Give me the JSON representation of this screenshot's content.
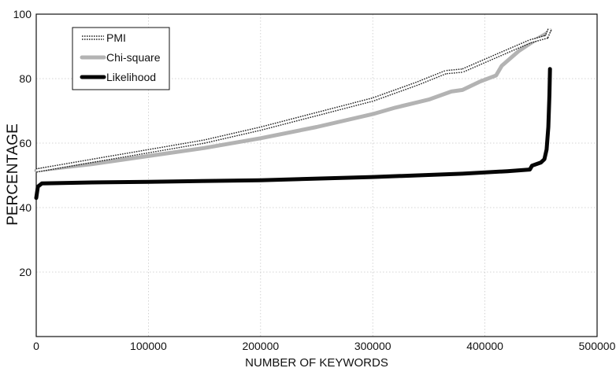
{
  "chart_data": {
    "type": "line",
    "xlabel": "NUMBER OF KEYWORDS",
    "ylabel": "PERCENTAGE",
    "xlim": [
      0,
      500000
    ],
    "ylim": [
      0,
      100
    ],
    "x_ticks": [
      0,
      100000,
      200000,
      300000,
      400000,
      500000
    ],
    "x_tick_labels": [
      "0",
      "100000",
      "200000",
      "300000",
      "400000",
      "500000"
    ],
    "y_ticks": [
      20,
      40,
      60,
      80,
      100
    ],
    "y_tick_labels": [
      "20",
      "40",
      "60",
      "80",
      "100"
    ],
    "grid": true,
    "legend_position": "top-left",
    "series": [
      {
        "name": "PMI",
        "color": "#222222",
        "style": "open-square-markers",
        "points": [
          [
            0,
            51.5
          ],
          [
            50000,
            54.5
          ],
          [
            100000,
            57.5
          ],
          [
            150000,
            60.5
          ],
          [
            200000,
            64.5
          ],
          [
            250000,
            69
          ],
          [
            300000,
            73.5
          ],
          [
            340000,
            78.5
          ],
          [
            365000,
            82
          ],
          [
            380000,
            82.5
          ],
          [
            400000,
            85.5
          ],
          [
            420000,
            88.5
          ],
          [
            440000,
            91.5
          ],
          [
            455000,
            93
          ],
          [
            458000,
            95.5
          ]
        ]
      },
      {
        "name": "Chi-square",
        "color": "#b3b3b3",
        "style": "thick-line",
        "points": [
          [
            0,
            51.5
          ],
          [
            50000,
            53.5
          ],
          [
            100000,
            56
          ],
          [
            150000,
            58.5
          ],
          [
            200000,
            61.5
          ],
          [
            250000,
            65
          ],
          [
            300000,
            69
          ],
          [
            320000,
            71
          ],
          [
            350000,
            73.5
          ],
          [
            370000,
            76
          ],
          [
            380000,
            76.5
          ],
          [
            395000,
            79
          ],
          [
            410000,
            81
          ],
          [
            415000,
            84
          ],
          [
            430000,
            88.5
          ],
          [
            445000,
            92
          ],
          [
            455000,
            94
          ],
          [
            458000,
            95
          ]
        ]
      },
      {
        "name": "Likelihood",
        "color": "#050505",
        "style": "thick-line",
        "points": [
          [
            0,
            43
          ],
          [
            1500,
            46.5
          ],
          [
            5000,
            47.5
          ],
          [
            50000,
            47.8
          ],
          [
            100000,
            48
          ],
          [
            200000,
            48.5
          ],
          [
            300000,
            49.5
          ],
          [
            380000,
            50.5
          ],
          [
            420000,
            51.3
          ],
          [
            440000,
            51.8
          ],
          [
            442000,
            53
          ],
          [
            450000,
            54
          ],
          [
            453000,
            55
          ],
          [
            455000,
            58
          ],
          [
            456500,
            65
          ],
          [
            457500,
            75
          ],
          [
            458000,
            83
          ]
        ]
      }
    ]
  }
}
